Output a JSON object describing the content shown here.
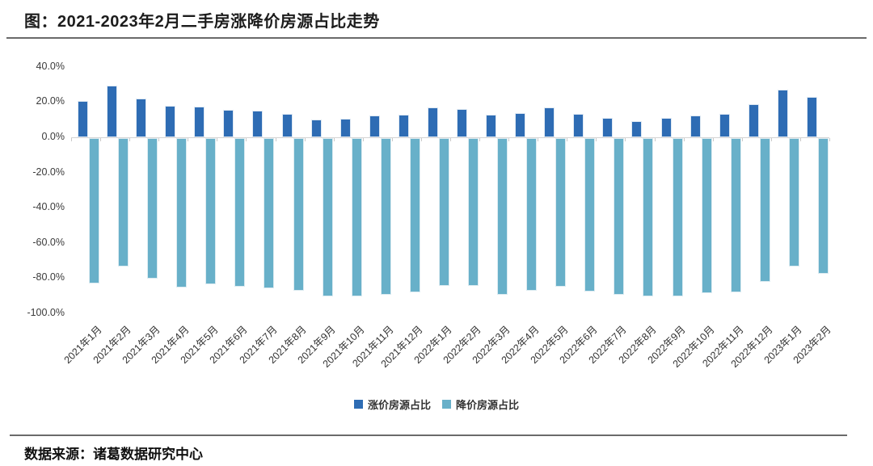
{
  "header": {
    "title": "图：2021-2023年2月二手房涨降价房源占比走势"
  },
  "footer": {
    "source": "数据来源：诸葛数据研究中心"
  },
  "legend": {
    "items": [
      {
        "label": "涨价房源占比",
        "color": "#2e6cb4"
      },
      {
        "label": "降价房源占比",
        "color": "#68b0c9"
      }
    ]
  },
  "chart_data": {
    "type": "bar",
    "title": "图：2021-2023年2月二手房涨降价房源占比走势",
    "xlabel": "",
    "ylabel": "",
    "ylim": [
      -100,
      40
    ],
    "grid": false,
    "legend_position": "bottom",
    "y_ticks": [
      {
        "value": 40,
        "label": "40.0%"
      },
      {
        "value": 20,
        "label": "20.0%"
      },
      {
        "value": 0,
        "label": "0.0%"
      },
      {
        "value": -20,
        "label": "-20.0%"
      },
      {
        "value": -40,
        "label": "-40.0%"
      },
      {
        "value": -60,
        "label": "-60.0%"
      },
      {
        "value": -80,
        "label": "-80.0%"
      },
      {
        "value": -100,
        "label": "-100.0%"
      }
    ],
    "categories": [
      "2021年1月",
      "2021年2月",
      "2021年3月",
      "2021年4月",
      "2021年5月",
      "2021年6月",
      "2021年7月",
      "2021年8月",
      "2021年9月",
      "2021年10月",
      "2021年11月",
      "2021年12月",
      "2022年1月",
      "2022年2月",
      "2022年3月",
      "2022年4月",
      "2022年5月",
      "2022年6月",
      "2022年7月",
      "2022年8月",
      "2022年9月",
      "2022年10月",
      "2022年11月",
      "2022年12月",
      "2023年1月",
      "2023年2月"
    ],
    "series": [
      {
        "name": "涨价房源占比",
        "color": "#2e6cb4",
        "values": [
          20.6,
          29.4,
          22.0,
          17.8,
          17.4,
          15.6,
          15.1,
          13.3,
          10.1,
          10.6,
          12.4,
          12.8,
          17.0,
          16.1,
          12.8,
          13.8,
          17.0,
          13.3,
          11.0,
          9.2,
          11.0,
          12.4,
          13.3,
          18.8,
          27.1,
          22.9
        ]
      },
      {
        "name": "降价房源占比",
        "color": "#68b0c9",
        "values": [
          -82.7,
          -72.8,
          -79.8,
          -84.9,
          -83.3,
          -84.4,
          -85.6,
          -86.8,
          -90.0,
          -89.9,
          -89.0,
          -87.9,
          -84.1,
          -83.8,
          -89.1,
          -86.8,
          -84.6,
          -87.2,
          -89.0,
          -90.2,
          -89.9,
          -88.2,
          -87.9,
          -81.5,
          -72.9,
          -77.0
        ]
      }
    ]
  }
}
